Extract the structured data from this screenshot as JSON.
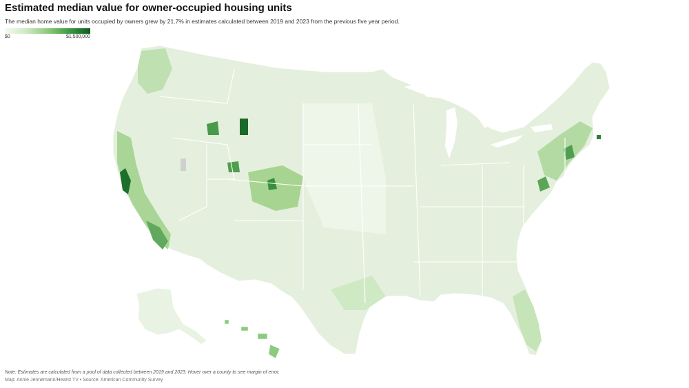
{
  "title": "Estimated median value for owner-occupied housing units",
  "subtitle": "The median home value for units occupied by owners grew by 21.7% in estimates calculated between 2019 and 2023 from the previous five year period.",
  "legend": {
    "min_label": "$0",
    "max_label": "$1,500,000",
    "min_color": "#f4faf0",
    "max_color": "#0b5a1e"
  },
  "note": "Note: Estimates are calculated from a pool of data collected between 2019 and 2023. Hover over a county to see margin of error.",
  "credit": "Map: Annie Jennemann/Hearst TV • Source: American Community Survey",
  "colors": {
    "base": "#e3f0dc",
    "state_border": "#ffffff",
    "no_data": "#d4d4d4"
  }
}
